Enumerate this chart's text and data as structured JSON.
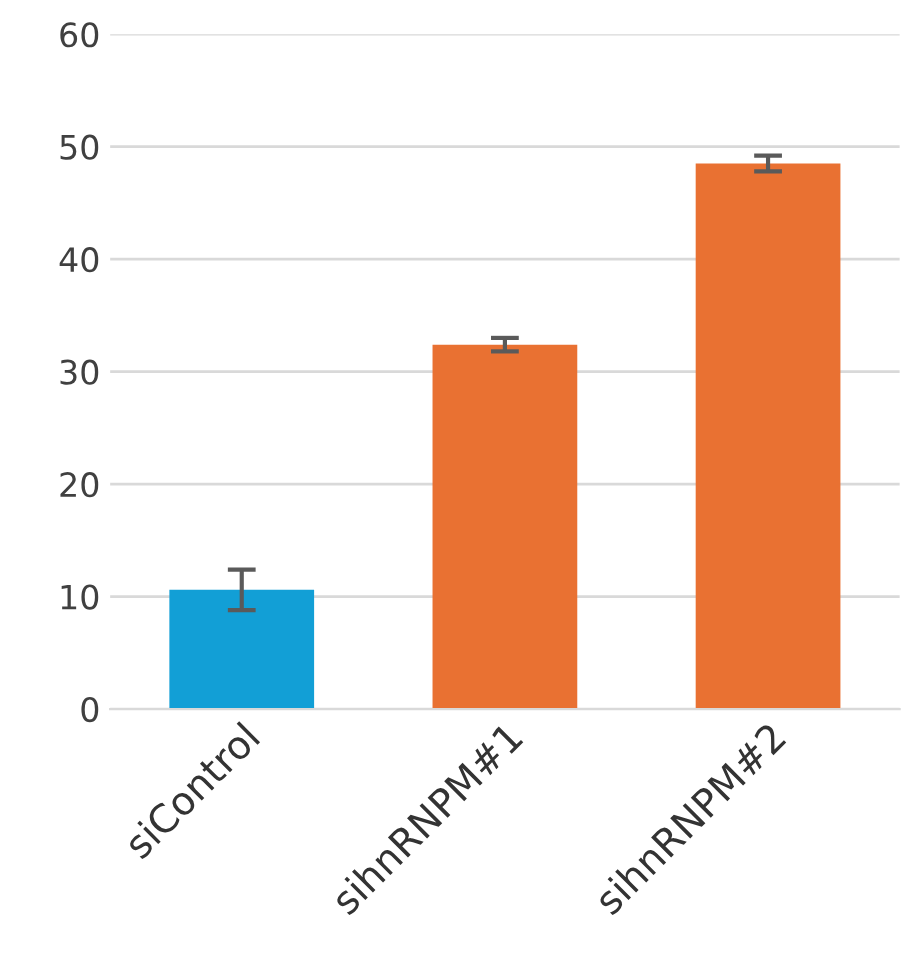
{
  "chart_data": {
    "type": "bar",
    "categories": [
      "siControl",
      "sihnRNPM#1",
      "sihnRNPM#2"
    ],
    "values": [
      10.6,
      32.4,
      48.5
    ],
    "colors": [
      "#129fd6",
      "#e97132",
      "#e97132"
    ],
    "errors": [
      1.8,
      0.6,
      0.7
    ],
    "ylim": [
      0,
      60
    ],
    "yticks": [
      0,
      10,
      20,
      30,
      40,
      50,
      60
    ],
    "grid": "y"
  }
}
